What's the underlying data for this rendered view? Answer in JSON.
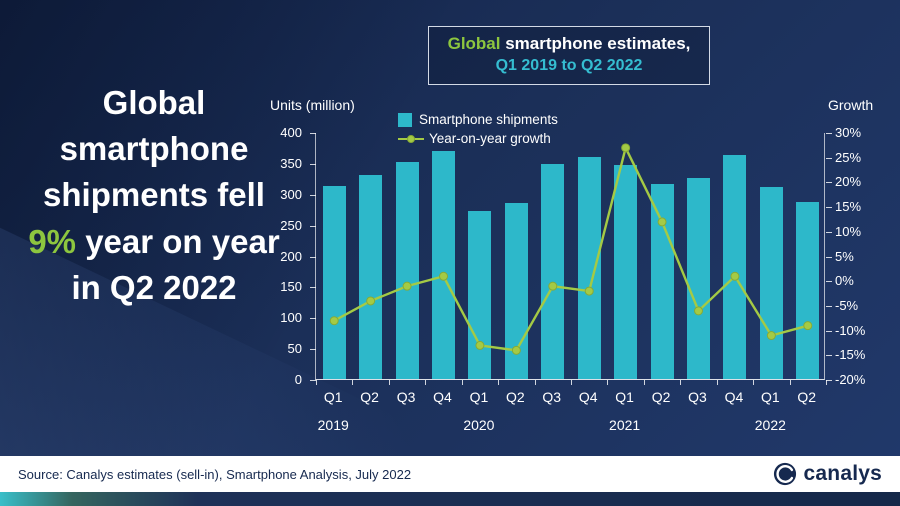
{
  "headline": {
    "part1": "Global smartphone shipments fell ",
    "highlight": "9%",
    "part2": " year on year in Q2 2022"
  },
  "title_box": {
    "line1_green": "Global",
    "line1_rest": " smartphone estimates,",
    "line2": "Q1 2019 to Q2 2022"
  },
  "footer": {
    "source": "Source: Canalys estimates (sell-in), Smartphone Analysis, July 2022",
    "brand": "canalys"
  },
  "colors": {
    "bar": "#2db8ca",
    "line": "#a4ca45",
    "line_dot_edge": "#87ab35",
    "accent_green": "#8dc63f",
    "accent_cyan": "#35bdd1",
    "navy": "#16294f"
  },
  "chart_data": {
    "type": "combo",
    "title": "Global smartphone estimates, Q1 2019 to Q2 2022",
    "categories": [
      "Q1",
      "Q2",
      "Q3",
      "Q4",
      "Q1",
      "Q2",
      "Q3",
      "Q4",
      "Q1",
      "Q2",
      "Q3",
      "Q4",
      "Q1",
      "Q2"
    ],
    "year_labels": [
      {
        "label": "2019",
        "slot": 0
      },
      {
        "label": "2020",
        "slot": 4
      },
      {
        "label": "2021",
        "slot": 8
      },
      {
        "label": "2022",
        "slot": 12
      }
    ],
    "series": [
      {
        "name": "Smartphone shipments",
        "type": "bar",
        "axis": "left",
        "color": "#2db8ca",
        "values": [
          313,
          331,
          352,
          369,
          272,
          285,
          348,
          359,
          347,
          316,
          325,
          362,
          311,
          287
        ]
      },
      {
        "name": "Year-on-year growth",
        "type": "line",
        "axis": "right",
        "color": "#a4ca45",
        "values": [
          -8,
          -4,
          -1,
          1,
          -13,
          -14,
          -1,
          -2,
          27,
          12,
          -6,
          1,
          -11,
          -9
        ]
      }
    ],
    "left_axis": {
      "label": "Units (million)",
      "min": 0,
      "max": 400,
      "step": 50,
      "suffix": ""
    },
    "right_axis": {
      "label": "Growth",
      "min": -20,
      "max": 30,
      "step": 5,
      "suffix": "%"
    },
    "legend_position": "top",
    "grid": false
  }
}
